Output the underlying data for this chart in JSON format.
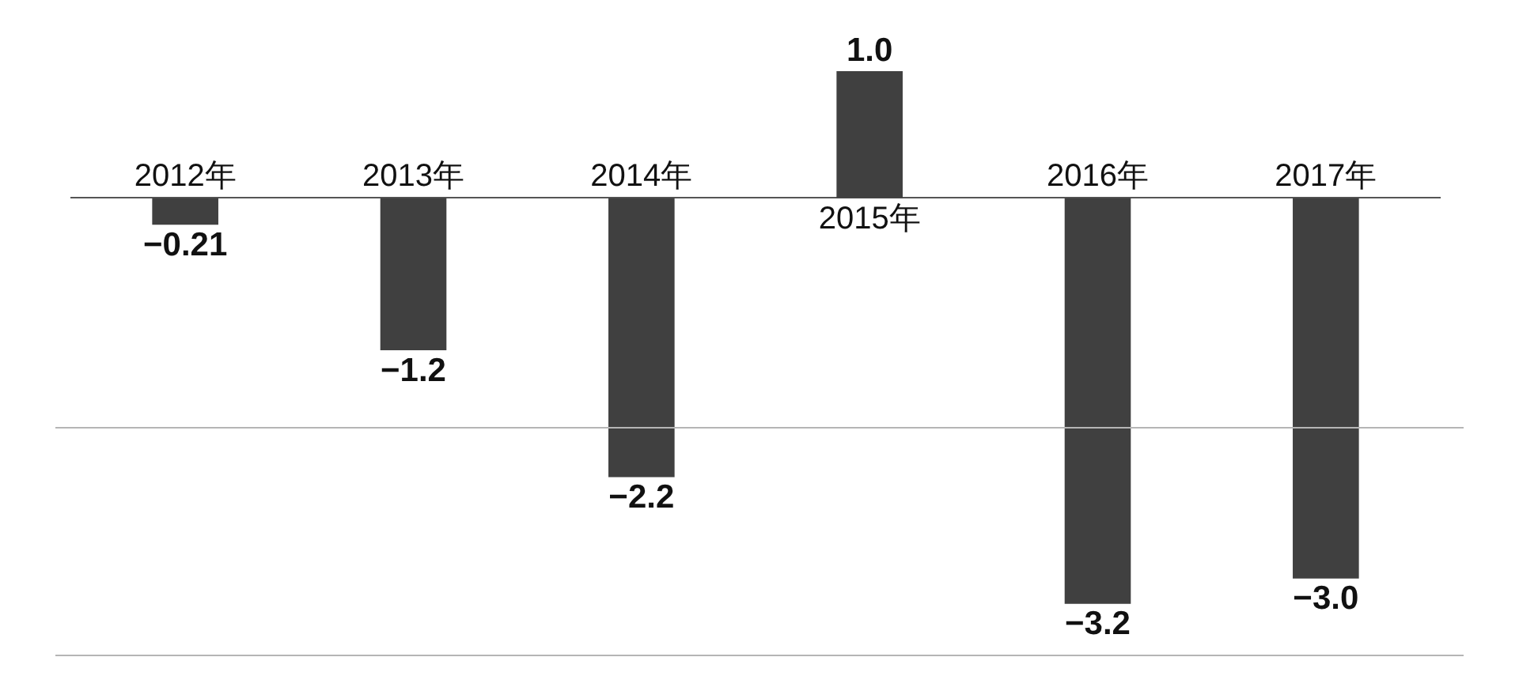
{
  "chart_data": {
    "type": "bar",
    "categories": [
      "2012年",
      "2013年",
      "2014年",
      "2015年",
      "2016年",
      "2017年"
    ],
    "values": [
      -0.21,
      -1.2,
      -2.2,
      1.0,
      -3.2,
      -3.0
    ],
    "value_labels": [
      "−0.21",
      "−1.2",
      "−2.2",
      "1.0",
      "−3.2",
      "−3.0"
    ],
    "color": "#404040",
    "ylim": [
      -3.6,
      1.0
    ],
    "ref_lines": [
      {
        "axis": "y",
        "value": -1.8,
        "color": "#b5b5b5"
      },
      {
        "axis": "y",
        "value": -3.6,
        "color": "#b5b5b5"
      }
    ]
  }
}
